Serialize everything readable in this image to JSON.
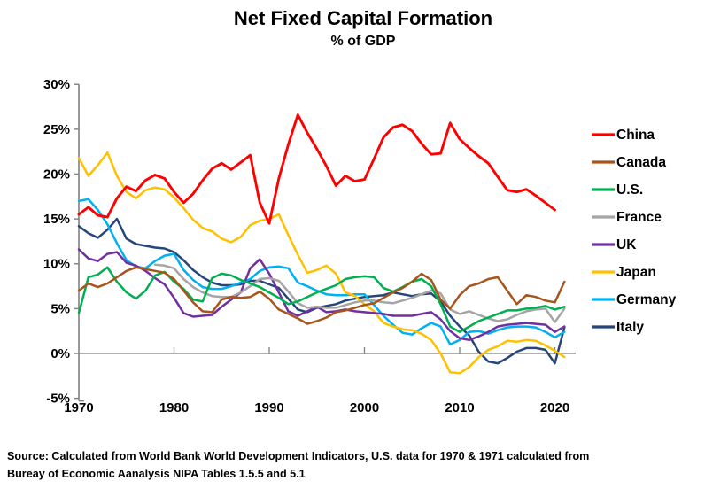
{
  "header": {
    "title": "Net Fixed Capital Formation",
    "subtitle": "% of GDP"
  },
  "source": {
    "line1": "Source:  Calculated from World Bank World Development Indicators, U.S. data for 1970 & 1971 calculated from",
    "line2": "Bureay of Economic Aanalysis NIPA Tables 1.5.5 and 5.1"
  },
  "chart_data": {
    "type": "line",
    "title": "Net Fixed Capital Formation",
    "subtitle": "% of GDP",
    "xlabel": "",
    "ylabel": "% of GDP",
    "ylim": [
      -5,
      30
    ],
    "xlim": [
      1970,
      2022
    ],
    "grid": false,
    "zero_line": true,
    "legend_position": "right",
    "x_tick_labels": [
      "1970",
      "1980",
      "1990",
      "2000",
      "2010",
      "2020"
    ],
    "x_ticks": [
      1970,
      1980,
      1990,
      2000,
      2010,
      2020
    ],
    "y_tick_labels": [
      "30%",
      "25%",
      "20%",
      "15%",
      "10%",
      "5%",
      "0%",
      "-5%"
    ],
    "y_ticks": [
      30,
      25,
      20,
      15,
      10,
      5,
      0,
      -5
    ],
    "years": [
      1970,
      1971,
      1972,
      1973,
      1974,
      1975,
      1976,
      1977,
      1978,
      1979,
      1980,
      1981,
      1982,
      1983,
      1984,
      1985,
      1986,
      1987,
      1988,
      1989,
      1990,
      1991,
      1992,
      1993,
      1994,
      1995,
      1996,
      1997,
      1998,
      1999,
      2000,
      2001,
      2002,
      2003,
      2004,
      2005,
      2006,
      2007,
      2008,
      2009,
      2010,
      2011,
      2012,
      2013,
      2014,
      2015,
      2016,
      2017,
      2018,
      2019,
      2020,
      2021
    ],
    "series": [
      {
        "name": "China",
        "color": "#FF0000",
        "values": [
          15.5,
          16.3,
          15.4,
          15.2,
          17.3,
          18.6,
          18.1,
          19.3,
          19.9,
          19.5,
          18.0,
          16.8,
          17.8,
          19.3,
          20.6,
          21.2,
          20.5,
          21.3,
          22.1,
          16.8,
          14.5,
          19.5,
          23.3,
          26.6,
          24.6,
          22.8,
          20.9,
          18.7,
          19.8,
          19.2,
          19.4,
          21.7,
          24.1,
          25.2,
          25.5,
          24.8,
          23.4,
          22.2,
          22.3,
          25.7,
          23.9,
          22.9,
          22.0,
          21.2,
          19.7,
          18.2,
          18.0,
          18.3,
          17.6,
          16.8,
          16.0,
          null
        ]
      },
      {
        "name": "Canada",
        "color": "#A6551D",
        "values": [
          7.0,
          7.8,
          7.4,
          7.8,
          8.5,
          9.2,
          9.6,
          9.4,
          9.2,
          9.0,
          8.3,
          7.0,
          5.7,
          4.7,
          4.6,
          6.0,
          6.3,
          6.2,
          6.3,
          6.9,
          6.1,
          4.9,
          4.4,
          3.9,
          3.3,
          3.6,
          4.0,
          4.6,
          4.8,
          5.1,
          5.4,
          5.6,
          6.2,
          6.8,
          7.3,
          8.0,
          8.9,
          8.2,
          6.0,
          5.0,
          6.5,
          7.5,
          7.8,
          8.3,
          8.5,
          7.0,
          5.5,
          6.5,
          6.3,
          5.9,
          5.7,
          8.0
        ]
      },
      {
        "name": "U.S.",
        "color": "#00B050",
        "values": [
          4.5,
          8.5,
          8.8,
          9.6,
          8.0,
          6.8,
          6.1,
          7.0,
          8.7,
          9.1,
          8.0,
          7.2,
          6.0,
          5.8,
          8.4,
          8.9,
          8.7,
          8.2,
          7.8,
          7.4,
          6.8,
          6.2,
          5.5,
          5.8,
          6.3,
          6.8,
          7.2,
          7.6,
          8.3,
          8.5,
          8.6,
          8.5,
          7.3,
          6.9,
          7.4,
          8.0,
          8.3,
          7.5,
          5.5,
          3.0,
          2.4,
          3.0,
          3.6,
          4.0,
          4.4,
          4.8,
          4.8,
          5.0,
          5.1,
          5.3,
          4.9,
          5.2
        ]
      },
      {
        "name": "France",
        "color": "#A5A5A5",
        "values": [
          null,
          null,
          null,
          null,
          null,
          null,
          null,
          null,
          9.9,
          9.8,
          9.5,
          8.3,
          7.4,
          6.8,
          6.4,
          6.3,
          6.3,
          6.8,
          7.5,
          8.3,
          8.4,
          8.1,
          6.9,
          5.6,
          5.1,
          5.2,
          5.1,
          5.1,
          5.4,
          5.7,
          5.9,
          5.9,
          5.7,
          5.6,
          5.9,
          6.2,
          6.6,
          7.0,
          6.7,
          4.9,
          4.4,
          4.7,
          4.3,
          3.9,
          3.6,
          3.8,
          4.3,
          4.7,
          4.9,
          5.0,
          3.5,
          5.0
        ]
      },
      {
        "name": "UK",
        "color": "#7030A0",
        "values": [
          11.6,
          10.6,
          10.3,
          11.1,
          11.3,
          10.1,
          9.8,
          9.2,
          8.4,
          7.7,
          6.2,
          4.5,
          4.1,
          4.2,
          4.3,
          5.2,
          6.0,
          6.8,
          9.5,
          10.5,
          8.9,
          6.8,
          4.7,
          4.2,
          4.7,
          5.2,
          4.6,
          4.7,
          4.9,
          4.7,
          4.6,
          4.5,
          4.4,
          4.2,
          4.2,
          4.2,
          4.4,
          4.6,
          3.8,
          2.5,
          1.7,
          1.5,
          1.9,
          2.4,
          3.0,
          3.2,
          3.3,
          3.4,
          3.3,
          3.2,
          2.4,
          3.0
        ]
      },
      {
        "name": "Japan",
        "color": "#FFC000",
        "values": [
          21.8,
          19.8,
          21.0,
          22.4,
          19.8,
          18.0,
          17.3,
          18.2,
          18.5,
          18.3,
          17.4,
          16.2,
          14.9,
          14.0,
          13.6,
          12.8,
          12.4,
          13.0,
          14.3,
          14.8,
          15.0,
          15.5,
          13.2,
          11.0,
          9.0,
          9.3,
          9.8,
          8.9,
          6.8,
          6.4,
          5.5,
          4.7,
          3.4,
          3.0,
          2.7,
          2.6,
          2.2,
          1.5,
          0.0,
          -2.1,
          -2.2,
          -1.5,
          -0.4,
          0.4,
          0.8,
          1.4,
          1.3,
          1.5,
          1.4,
          0.9,
          0.3,
          -0.4
        ]
      },
      {
        "name": "Germany",
        "color": "#00B0F0",
        "values": [
          17.0,
          17.2,
          16.0,
          14.4,
          12.3,
          10.4,
          9.7,
          9.5,
          10.3,
          10.9,
          11.1,
          9.3,
          8.2,
          7.4,
          7.2,
          7.2,
          7.5,
          7.9,
          8.3,
          9.2,
          9.6,
          9.7,
          9.5,
          7.9,
          7.5,
          7.0,
          6.6,
          6.5,
          6.5,
          6.6,
          6.6,
          5.4,
          4.2,
          3.2,
          2.3,
          2.1,
          2.8,
          3.4,
          3.0,
          1.0,
          1.5,
          2.4,
          2.5,
          2.2,
          2.6,
          2.9,
          3.0,
          3.0,
          2.9,
          2.4,
          1.8,
          2.4
        ]
      },
      {
        "name": "Italy",
        "color": "#264579",
        "values": [
          14.2,
          13.4,
          12.9,
          13.8,
          15.0,
          12.8,
          12.2,
          12.0,
          11.8,
          11.7,
          11.3,
          10.4,
          9.3,
          8.5,
          7.9,
          7.6,
          7.6,
          7.7,
          8.1,
          8.1,
          7.7,
          7.3,
          6.1,
          4.9,
          4.6,
          5.1,
          5.3,
          5.5,
          5.9,
          6.1,
          6.3,
          6.4,
          6.5,
          6.8,
          6.6,
          6.4,
          6.6,
          6.7,
          5.8,
          4.2,
          3.0,
          2.0,
          0.2,
          -0.9,
          -1.1,
          -0.5,
          0.2,
          0.6,
          0.6,
          0.4,
          -1.1,
          2.9
        ]
      }
    ]
  }
}
